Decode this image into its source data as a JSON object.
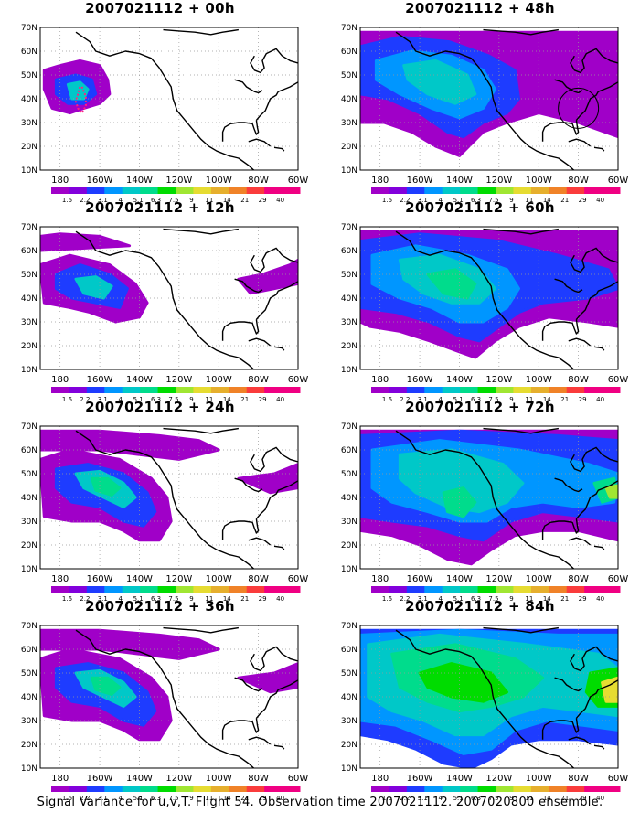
{
  "footer": "Signal Variance for u,v,T. Flight 54. Observation time 2007021112. 2007020800 ensemble.",
  "lat_labels": [
    "70N",
    "60N",
    "50N",
    "40N",
    "30N",
    "20N",
    "10N"
  ],
  "lon_labels": [
    "180",
    "160W",
    "140W",
    "120W",
    "100W",
    "80W",
    "60W"
  ],
  "colorbar": {
    "labels": [
      "1.6",
      "2.2",
      "3.1",
      "4",
      "5.1",
      "6.3",
      "7.5",
      "9",
      "11",
      "14",
      "21",
      "29",
      "40"
    ],
    "colors": [
      "#a000c8",
      "#8200dc",
      "#1e3cff",
      "#0096ff",
      "#00c8c8",
      "#00dc8c",
      "#00dc00",
      "#a0e632",
      "#e6dc32",
      "#e6af2d",
      "#f08228",
      "#fa3c3c",
      "#f00082"
    ]
  },
  "panels": [
    {
      "title": "2007021112 + 00h",
      "level": 0
    },
    {
      "title": "2007021112 + 48h",
      "level": 3
    },
    {
      "title": "2007021112 + 12h",
      "level": 1
    },
    {
      "title": "2007021112 + 60h",
      "level": 4
    },
    {
      "title": "2007021112 + 24h",
      "level": 2
    },
    {
      "title": "2007021112 + 72h",
      "level": 5
    },
    {
      "title": "2007021112 + 36h",
      "level": 2
    },
    {
      "title": "2007021112 + 84h",
      "level": 6
    }
  ]
}
